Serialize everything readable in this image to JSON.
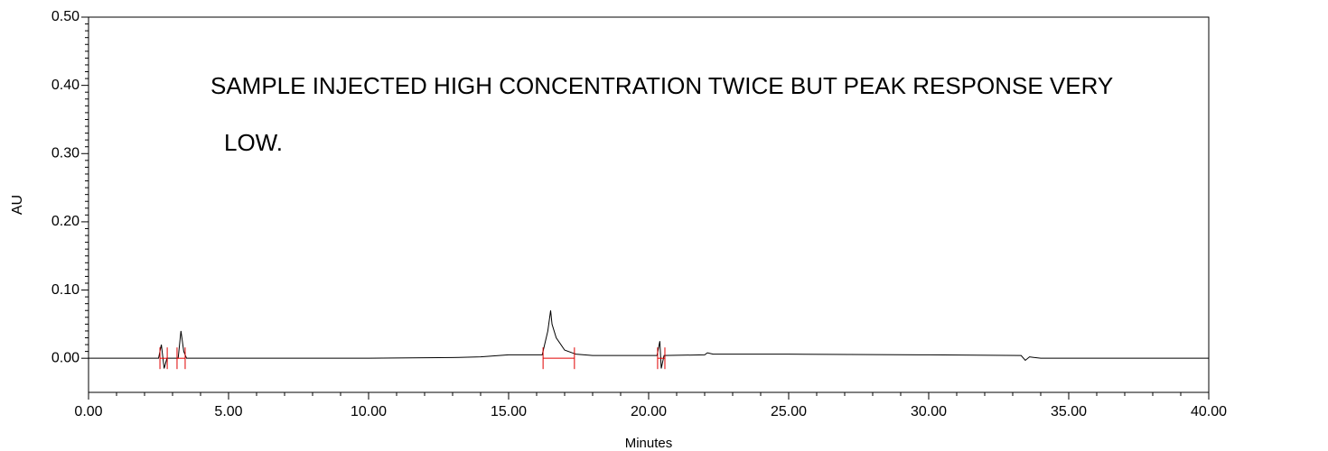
{
  "chart_data": {
    "type": "line",
    "xlabel": "Minutes",
    "ylabel": "AU",
    "annotations": [
      "SAMPLE INJECTED HIGH CONCENTRATION TWICE BUT PEAK RESPONSE VERY",
      "LOW."
    ],
    "x": [
      0,
      2.5,
      2.6,
      2.7,
      2.8,
      3.2,
      3.3,
      3.4,
      3.5,
      10,
      13,
      14,
      15,
      16.2,
      16.4,
      16.5,
      16.55,
      16.7,
      17,
      17.4,
      18,
      20,
      20.3,
      20.4,
      20.45,
      20.55,
      22,
      22.1,
      22.3,
      25,
      30,
      33.3,
      33.45,
      33.6,
      34,
      40
    ],
    "series": [
      {
        "color": "#000000",
        "values": [
          0,
          0,
          0.02,
          -0.015,
          0,
          0,
          0.04,
          0.01,
          0,
          0,
          0.001,
          0.002,
          0.005,
          0.005,
          0.04,
          0.07,
          0.05,
          0.03,
          0.012,
          0.006,
          0.004,
          0.004,
          0.004,
          0.025,
          -0.015,
          0.004,
          0.005,
          0.008,
          0.006,
          0.006,
          0.005,
          0.004,
          -0.003,
          0.002,
          0,
          0
        ]
      }
    ],
    "integration": {
      "color": "#e00000",
      "start": [
        2.55,
        3.16,
        16.23,
        20.32
      ],
      "end": [
        2.81,
        3.45,
        17.35,
        20.58
      ]
    },
    "xlim": [
      0,
      40
    ],
    "ylim": [
      -0.05,
      0.5
    ],
    "xticks": [
      {
        "value": 0,
        "label": "0.00"
      },
      {
        "value": 5,
        "label": "5.00"
      },
      {
        "value": 10,
        "label": "10.00"
      },
      {
        "value": 15,
        "label": "15.00"
      },
      {
        "value": 20,
        "label": "20.00"
      },
      {
        "value": 25,
        "label": "25.00"
      },
      {
        "value": 30,
        "label": "30.00"
      },
      {
        "value": 35,
        "label": "35.00"
      },
      {
        "value": 40,
        "label": "40.00"
      }
    ],
    "yticks": [
      {
        "value": 0,
        "label": "0.00"
      },
      {
        "value": 0.1,
        "label": "0.10"
      },
      {
        "value": 0.2,
        "label": "0.20"
      },
      {
        "value": 0.3,
        "label": "0.30"
      },
      {
        "value": 0.4,
        "label": "0.40"
      },
      {
        "value": 0.5,
        "label": "0.50"
      }
    ],
    "grid": false
  }
}
